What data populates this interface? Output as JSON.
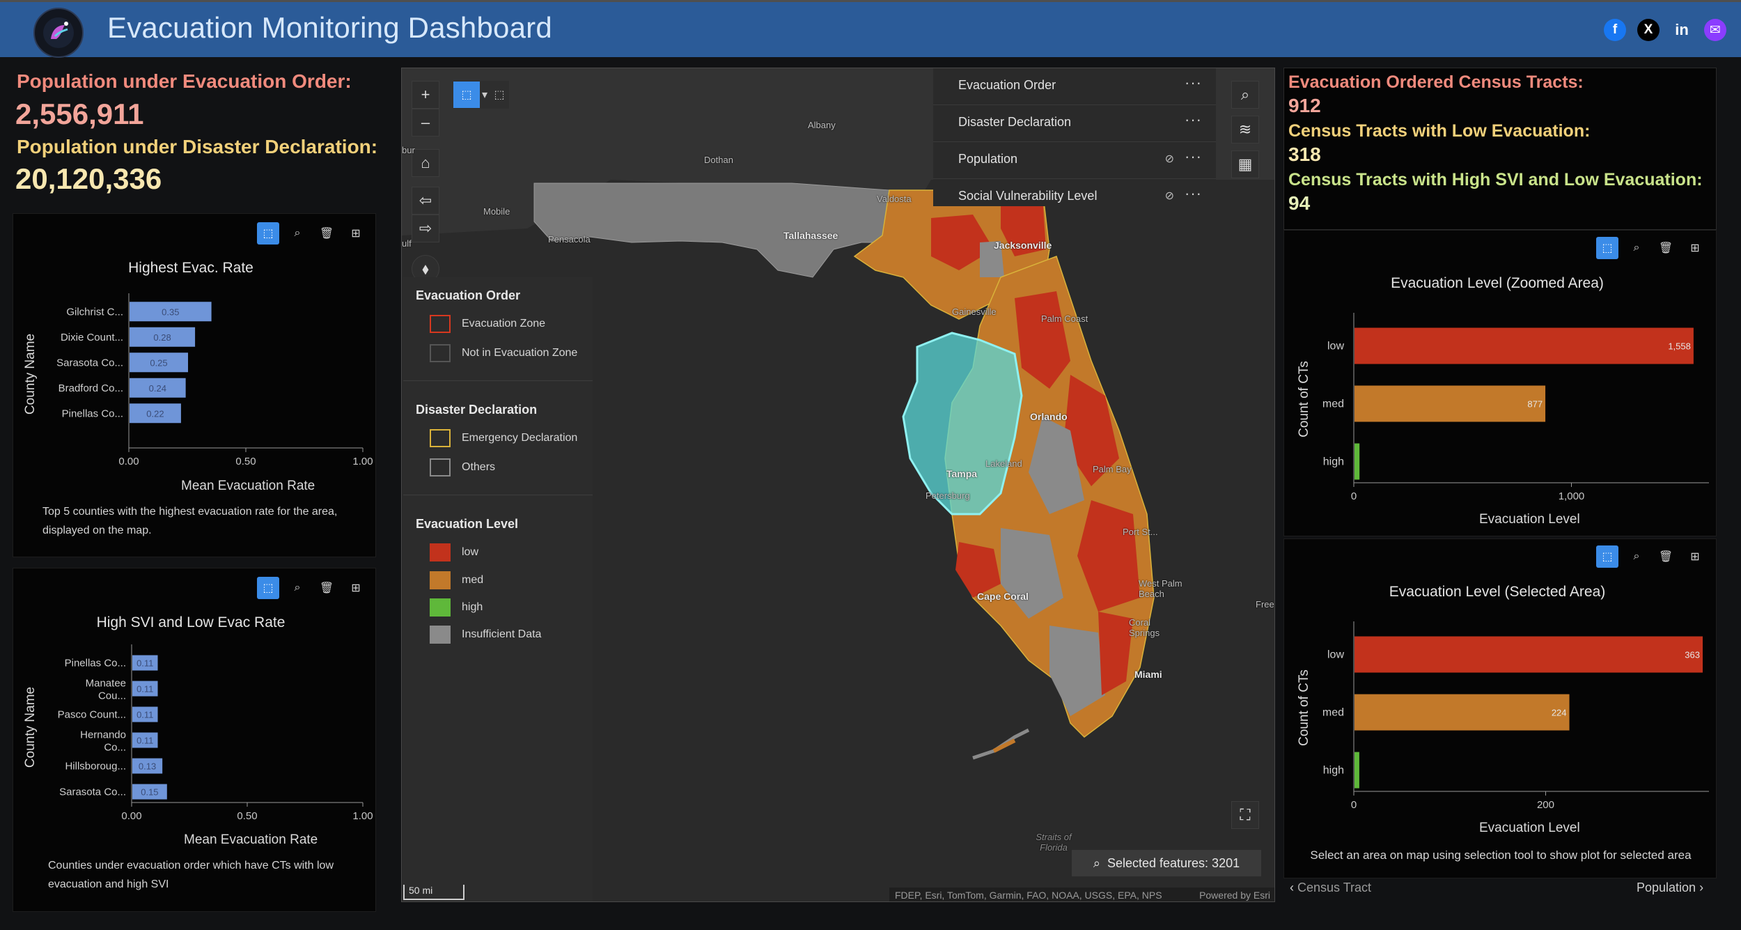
{
  "header": {
    "title": "Evacuation Monitoring Dashboard",
    "social": {
      "facebook": "f",
      "x": "X",
      "linkedin": "in",
      "mail": "✉"
    }
  },
  "stats": {
    "evac_order_label": "Population under Evacuation Order:",
    "evac_order_value": "2,556,911",
    "disaster_label": "Population under Disaster Declaration:",
    "disaster_value": "20,120,336"
  },
  "chart1": {
    "title": "Highest Evac. Rate",
    "ylabel": "County Name",
    "xlabel": "Mean Evacuation Rate",
    "ticks": [
      "0.00",
      "0.50",
      "1.00"
    ],
    "note": "Top 5 counties with the highest evacuation rate for the area, displayed on the map.",
    "chart_data": {
      "type": "bar",
      "categories": [
        "Gilchrist C...",
        "Dixie Count...",
        "Sarasota Co...",
        "Bradford Co...",
        "Pinellas Co..."
      ],
      "values": [
        0.35,
        0.28,
        0.25,
        0.24,
        0.22
      ],
      "value_labels": [
        "0.35",
        "0.28",
        "0.25",
        "0.24",
        "0.22"
      ],
      "xlim": [
        0,
        1
      ]
    }
  },
  "chart2": {
    "title": "High SVI and Low Evac Rate",
    "ylabel": "County Name",
    "xlabel": "Mean Evacuation Rate",
    "ticks": [
      "0.00",
      "0.50",
      "1.00"
    ],
    "note": "Counties under evacuation order which have CTs with low evacuation and high SVI",
    "chart_data": {
      "type": "bar",
      "categories": [
        "Pinellas Co...",
        "Manatee Cou...",
        "Pasco Count...",
        "Hernando Co...",
        "Hillsboroug...",
        "Sarasota Co..."
      ],
      "values": [
        0.11,
        0.11,
        0.11,
        0.11,
        0.13,
        0.15
      ],
      "value_labels": [
        "0.11",
        "0.11",
        "0.11",
        "0.11",
        "0.13",
        "0.15"
      ],
      "xlim": [
        0,
        1
      ]
    }
  },
  "map": {
    "layers": [
      {
        "label": "Evacuation Order",
        "visible": true
      },
      {
        "label": "Disaster Declaration",
        "visible": true
      },
      {
        "label": "Population",
        "visible": false
      },
      {
        "label": "Social Vulnerability Level",
        "visible": false
      }
    ],
    "legend": {
      "evac_order_title": "Evacuation Order",
      "evac_zone": "Evacuation Zone",
      "not_evac_zone": "Not in Evacuation Zone",
      "disaster_title": "Disaster Declaration",
      "emergency": "Emergency Declaration",
      "others": "Others",
      "level_title": "Evacuation Level",
      "low": "low",
      "med": "med",
      "high": "high",
      "insufficient": "Insufficient Data"
    },
    "colors": {
      "low": "#c2321c",
      "med": "#c2792a",
      "high": "#5fb83a",
      "insufficient": "#8a8a8a",
      "evac_outline": "#d6381f",
      "declaration": "#d9b23a",
      "selection": "#59d8d8"
    },
    "cities": {
      "albany": "Albany",
      "dothan": "Dothan",
      "valdosta": "Valdosta",
      "mobile": "Mobile",
      "pensacola": "Pensacola",
      "tallahassee": "Tallahassee",
      "jacksonville": "Jacksonville",
      "gainesville": "Gainesville",
      "palm_coast": "Palm Coast",
      "orlando": "Orlando",
      "tampa": "Tampa",
      "lakeland": "Lakeland",
      "st_pete": "Petersburg",
      "palm_bay": "Palm Bay",
      "port_st_lucie": "Port St...",
      "west_palm": "West Palm Beach",
      "cape_coral": "Cape Coral",
      "coral_springs": "Coral Springs",
      "miami": "Miami",
      "free": "Free",
      "gulf": "ulf",
      "bur": "bur",
      "straits": "Straits of Florida"
    },
    "selected_features": "Selected features: 3201",
    "scale": "50 mi",
    "attribution": "FDEP, Esri, TomTom, Garmin, FAO, NOAA, USGS, EPA, NPS",
    "powered_by": "Powered by Esri"
  },
  "right_stats": {
    "ordered_label": "Evacuation Ordered Census Tracts:",
    "ordered_value": "912",
    "low_label": "Census Tracts with Low Evacuation:",
    "low_value": "318",
    "svi_label": "Census Tracts with High SVI and Low Evacuation:",
    "svi_value": "94"
  },
  "chart3": {
    "title": "Evacuation Level (Zoomed Area)",
    "ylabel": "Count of CTs",
    "xlabel": "Evacuation Level",
    "ticks": [
      "0",
      "1,000"
    ],
    "chart_data": {
      "type": "bar",
      "categories": [
        "low",
        "med",
        "high"
      ],
      "values": [
        1558,
        877,
        23
      ],
      "value_labels": [
        "1,558",
        "877",
        ""
      ],
      "xlim": [
        0,
        1600
      ]
    }
  },
  "chart4": {
    "title": "Evacuation Level (Selected Area)",
    "ylabel": "Count of CTs",
    "xlabel": "Evacuation Level",
    "ticks": [
      "0",
      "200"
    ],
    "note": "Select an area on map using selection tool to show plot for selected area",
    "chart_data": {
      "type": "bar",
      "categories": [
        "low",
        "med",
        "high"
      ],
      "values": [
        363,
        224,
        5
      ],
      "value_labels": [
        "363",
        "224",
        ""
      ],
      "xlim": [
        0,
        363
      ]
    }
  },
  "footer": {
    "prev": "Census Tract",
    "next": "Population"
  }
}
